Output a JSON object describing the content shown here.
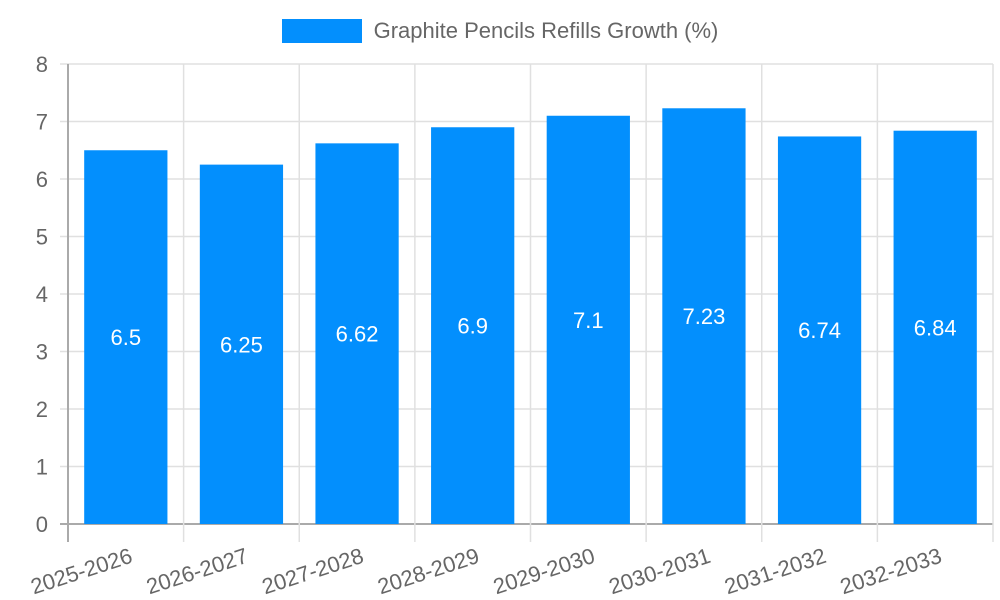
{
  "chart_data": {
    "type": "bar",
    "title": "",
    "legend": [
      "Graphite Pencils Refills Growth (%)"
    ],
    "legend_position": "top",
    "categories": [
      "2025-2026",
      "2026-2027",
      "2027-2028",
      "2028-2029",
      "2029-2030",
      "2030-2031",
      "2031-2032",
      "2032-2033"
    ],
    "series": [
      {
        "name": "Graphite Pencils Refills Growth (%)",
        "values": [
          6.5,
          6.25,
          6.62,
          6.9,
          7.1,
          7.23,
          6.74,
          6.84
        ],
        "color": "#038ffd"
      }
    ],
    "data_labels": [
      "6.5",
      "6.25",
      "6.62",
      "6.9",
      "7.1",
      "7.23",
      "6.74",
      "6.84"
    ],
    "xlabel": "",
    "ylabel": "",
    "ylim": [
      0,
      8
    ],
    "yticks": [
      0,
      1,
      2,
      3,
      4,
      5,
      6,
      7,
      8
    ],
    "grid": true
  },
  "legend": {
    "label": "Graphite Pencils Refills Growth (%)",
    "color": "#038ffd"
  }
}
